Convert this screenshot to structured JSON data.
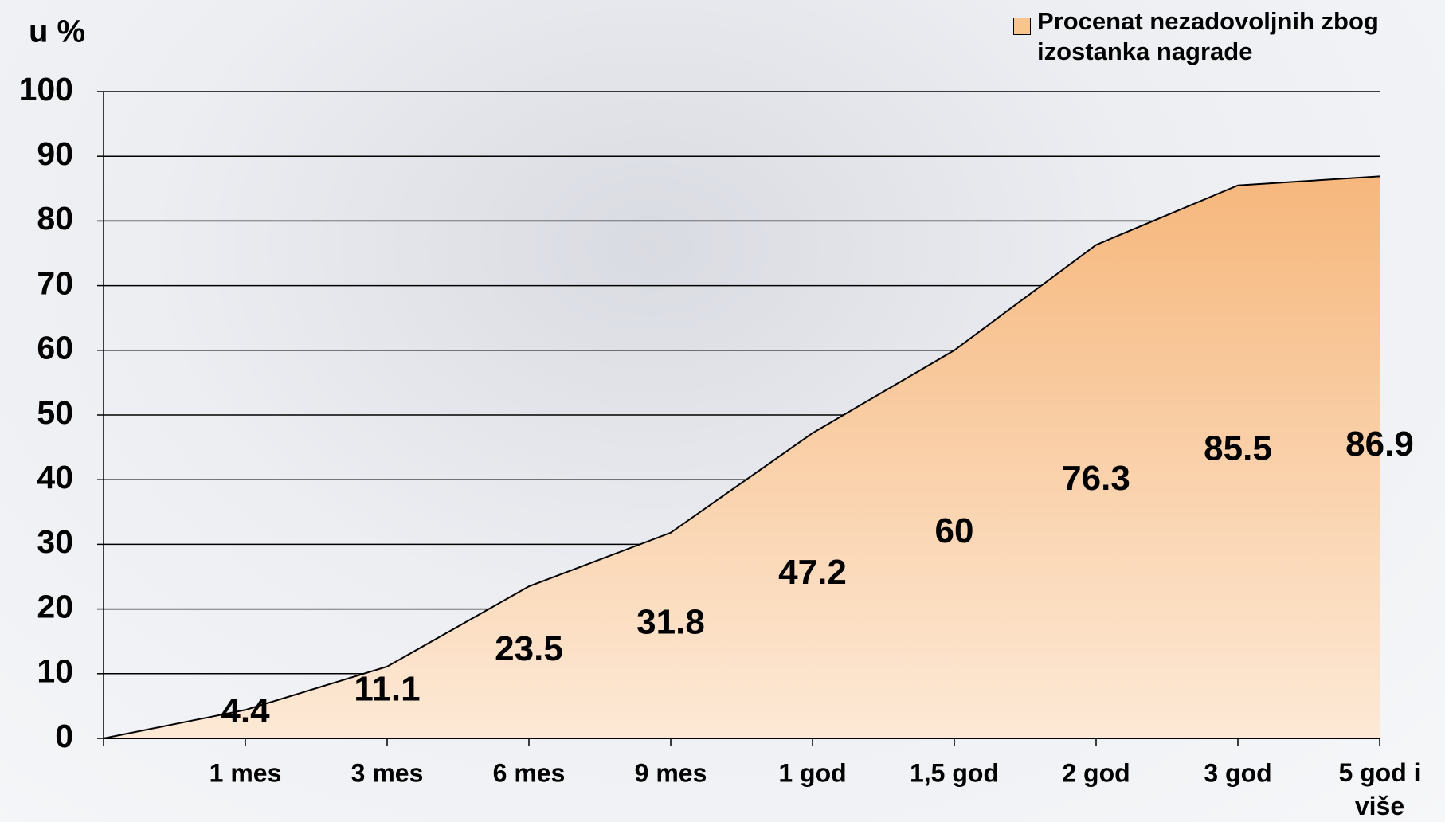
{
  "chart_data": {
    "type": "area",
    "ylabel": "u %",
    "categories": [
      null,
      "1 mes",
      "3 mes",
      "6 mes",
      "9 mes",
      "1 god",
      "1,5 god",
      "2 god",
      "3 god",
      "5 god i više"
    ],
    "series": [
      {
        "name": "Procenat nezadovoljnih zbog izostanka nagrade",
        "color": "#f9c48e",
        "values": [
          0,
          4.4,
          11.1,
          23.5,
          31.8,
          47.2,
          60,
          76.3,
          85.5,
          86.9
        ]
      }
    ],
    "ylim": [
      0,
      100
    ],
    "yticks": [
      0,
      10,
      20,
      30,
      40,
      50,
      60,
      70,
      80,
      90,
      100
    ],
    "grid": true,
    "legend": "top-right",
    "data_labels": true
  }
}
